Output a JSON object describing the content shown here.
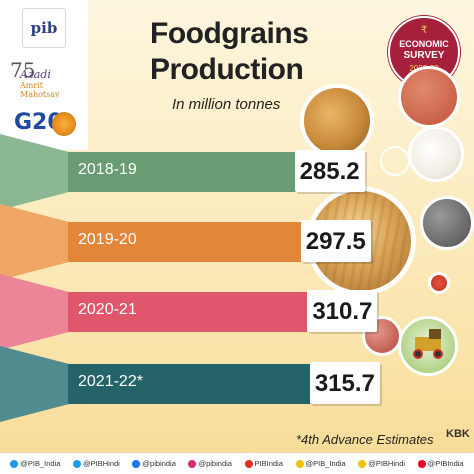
{
  "logos": {
    "pib": "pib",
    "azadi_75": "75",
    "azadi_line1": "Azadi",
    "azadi_line2": "Amrit Mahotsav",
    "g20": "G20"
  },
  "badge": {
    "line1": "ECONOMIC",
    "line2": "SURVEY",
    "line3": "2022-23"
  },
  "chart_data": {
    "type": "bar",
    "title": "Foodgrains Production",
    "subtitle": "In million tonnes",
    "categories": [
      "2018-19",
      "2019-20",
      "2020-21",
      "2021-22*"
    ],
    "values": [
      285.2,
      297.5,
      310.7,
      315.7
    ],
    "value_labels": [
      "285.2",
      "297.5",
      "310.7",
      "315.7"
    ],
    "bar_colors": [
      "#6a9c74",
      "#e2873a",
      "#e0566d",
      "#246468"
    ],
    "wedge_colors": [
      "#8ab893",
      "#f0a665",
      "#ec8598",
      "#4f8b8f"
    ],
    "note": "*4th Advance Estimates"
  },
  "credit": "KBK",
  "footer": {
    "items": [
      {
        "handle": "@PIB_India",
        "color": "#1d9bf0"
      },
      {
        "handle": "@PIBHindi",
        "color": "#1d9bf0"
      },
      {
        "handle": "@pibindia",
        "color": "#1877f2"
      },
      {
        "handle": "@pibindia",
        "color": "#d62976"
      },
      {
        "handle": "PIBIndia",
        "color": "#e52d27"
      },
      {
        "handle": "@PIB_India",
        "color": "#f2c200"
      },
      {
        "handle": "@PIBHindi",
        "color": "#f2c200"
      },
      {
        "handle": "@PIBIndia",
        "color": "#e60023"
      }
    ]
  }
}
